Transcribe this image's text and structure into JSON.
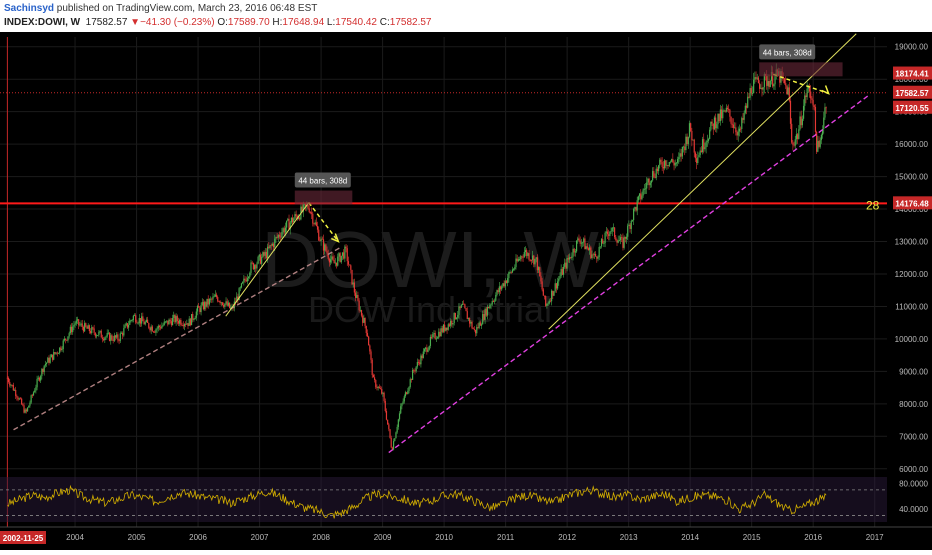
{
  "header": {
    "author": "Sachinsyd",
    "published": " published on TradingView.com, March 23, 2016 06:48 EST",
    "symbol": "INDEX:DOWI, W",
    "last": "17582.57",
    "change": "▼−41.30 (−0.23%)",
    "o_label": "O:",
    "o": "17589.70",
    "h_label": "H:",
    "h": "17648.94",
    "l_label": "L:",
    "l": "17540.42",
    "c_label": "C:",
    "c": "17582.57"
  },
  "watermark": {
    "symbol": "DOWI, W",
    "name": "DOW Industrial"
  },
  "annotations": {
    "measure1": "44 bars, 308d",
    "measure2": "44 bars, 308d",
    "count": "28"
  },
  "colors": {
    "background": "#000000",
    "up": "#4caf50",
    "down": "#e53935",
    "trend_yellow": "#e0e060",
    "trend_magenta": "#e040e0",
    "trend_pink": "#b08080",
    "measure": "#f0f040",
    "resistance": "#ff1a1a",
    "rsi": "#d4b000"
  },
  "chart_data": {
    "type": "candlestick",
    "symbol": "INDEX:DOWI",
    "interval": "W",
    "x_ticks": [
      "2004",
      "2005",
      "2006",
      "2007",
      "2008",
      "2009",
      "2010",
      "2011",
      "2012",
      "2013",
      "2014",
      "2015",
      "2016",
      "2017"
    ],
    "x_start_label": "2002-11-25",
    "y_ticks": [
      6000,
      7000,
      8000,
      9000,
      10000,
      11000,
      12000,
      13000,
      14000,
      15000,
      16000,
      17000,
      18000,
      19000
    ],
    "y_tick_labels": [
      "6000.00",
      "7000.00",
      "8000.00",
      "9000.00",
      "10000.00",
      "11000.00",
      "12000.00",
      "13000.00",
      "14000.00",
      "15000.00",
      "16000.00",
      "17000.00",
      "18000.00",
      "19000.00"
    ],
    "ylim": [
      5900,
      19300
    ],
    "price_markers": [
      {
        "label": "18174.41",
        "value": 18174.41
      },
      {
        "label": "17582.57",
        "value": 17582.57
      },
      {
        "label": "17120.55",
        "value": 17120.55
      },
      {
        "label": "14176.48",
        "value": 14176.48
      }
    ],
    "resistance_level": 14176.48,
    "series": [
      {
        "t": 2002.9,
        "v": 8800
      },
      {
        "t": 2003.05,
        "v": 8300
      },
      {
        "t": 2003.2,
        "v": 7700
      },
      {
        "t": 2003.35,
        "v": 8500
      },
      {
        "t": 2003.5,
        "v": 9200
      },
      {
        "t": 2003.75,
        "v": 9700
      },
      {
        "t": 2004.0,
        "v": 10500
      },
      {
        "t": 2004.2,
        "v": 10300
      },
      {
        "t": 2004.45,
        "v": 10100
      },
      {
        "t": 2004.7,
        "v": 10000
      },
      {
        "t": 2004.95,
        "v": 10700
      },
      {
        "t": 2005.3,
        "v": 10300
      },
      {
        "t": 2005.6,
        "v": 10600
      },
      {
        "t": 2005.85,
        "v": 10500
      },
      {
        "t": 2006.0,
        "v": 10900
      },
      {
        "t": 2006.3,
        "v": 11300
      },
      {
        "t": 2006.55,
        "v": 10900
      },
      {
        "t": 2006.85,
        "v": 12200
      },
      {
        "t": 2007.1,
        "v": 12600
      },
      {
        "t": 2007.35,
        "v": 13300
      },
      {
        "t": 2007.55,
        "v": 13700
      },
      {
        "t": 2007.8,
        "v": 14100
      },
      {
        "t": 2008.0,
        "v": 13000
      },
      {
        "t": 2008.2,
        "v": 12300
      },
      {
        "t": 2008.4,
        "v": 12700
      },
      {
        "t": 2008.55,
        "v": 11400
      },
      {
        "t": 2008.75,
        "v": 10200
      },
      {
        "t": 2008.85,
        "v": 8700
      },
      {
        "t": 2009.0,
        "v": 8300
      },
      {
        "t": 2009.15,
        "v": 6600
      },
      {
        "t": 2009.3,
        "v": 7900
      },
      {
        "t": 2009.5,
        "v": 9000
      },
      {
        "t": 2009.8,
        "v": 10000
      },
      {
        "t": 2010.1,
        "v": 10500
      },
      {
        "t": 2010.3,
        "v": 11000
      },
      {
        "t": 2010.5,
        "v": 10200
      },
      {
        "t": 2010.75,
        "v": 11100
      },
      {
        "t": 2011.0,
        "v": 11800
      },
      {
        "t": 2011.3,
        "v": 12700
      },
      {
        "t": 2011.5,
        "v": 12400
      },
      {
        "t": 2011.65,
        "v": 11000
      },
      {
        "t": 2011.9,
        "v": 12000
      },
      {
        "t": 2012.2,
        "v": 13100
      },
      {
        "t": 2012.45,
        "v": 12500
      },
      {
        "t": 2012.7,
        "v": 13400
      },
      {
        "t": 2012.9,
        "v": 12900
      },
      {
        "t": 2013.1,
        "v": 14000
      },
      {
        "t": 2013.35,
        "v": 15000
      },
      {
        "t": 2013.6,
        "v": 15500
      },
      {
        "t": 2013.8,
        "v": 15400
      },
      {
        "t": 2014.0,
        "v": 16500
      },
      {
        "t": 2014.1,
        "v": 15600
      },
      {
        "t": 2014.4,
        "v": 16700
      },
      {
        "t": 2014.6,
        "v": 17000
      },
      {
        "t": 2014.8,
        "v": 16300
      },
      {
        "t": 2015.0,
        "v": 17800
      },
      {
        "t": 2015.3,
        "v": 18000
      },
      {
        "t": 2015.45,
        "v": 18100
      },
      {
        "t": 2015.6,
        "v": 17600
      },
      {
        "t": 2015.65,
        "v": 16000
      },
      {
        "t": 2015.75,
        "v": 16300
      },
      {
        "t": 2015.9,
        "v": 17700
      },
      {
        "t": 2016.0,
        "v": 17400
      },
      {
        "t": 2016.05,
        "v": 16000
      },
      {
        "t": 2016.1,
        "v": 15800
      },
      {
        "t": 2016.15,
        "v": 16600
      },
      {
        "t": 2016.23,
        "v": 17582
      }
    ],
    "trendlines": [
      {
        "style": "dashed",
        "color": "pink",
        "from": [
          2003.0,
          7200
        ],
        "to": [
          2008.3,
          12800
        ]
      },
      {
        "style": "solid",
        "color": "yellow",
        "from": [
          2006.45,
          10700
        ],
        "to": [
          2007.8,
          14200
        ]
      },
      {
        "style": "solid",
        "color": "yellow",
        "from": [
          2011.7,
          10300
        ],
        "to": [
          2016.7,
          19400
        ]
      },
      {
        "style": "dashed",
        "color": "magenta",
        "from": [
          2009.1,
          6500
        ],
        "to": [
          2016.9,
          17500
        ]
      }
    ],
    "rsi": {
      "levels": [
        70,
        30
      ],
      "tick_labels": [
        "80.0000",
        "40.0000"
      ],
      "values": [
        48,
        55,
        62,
        58,
        65,
        70,
        60,
        54,
        50,
        56,
        62,
        58,
        52,
        60,
        66,
        63,
        58,
        55,
        50,
        56,
        62,
        68,
        60,
        50,
        42,
        38,
        30,
        35,
        45,
        58,
        64,
        60,
        55,
        48,
        52,
        60,
        64,
        58,
        50,
        42,
        48,
        58,
        62,
        55,
        50,
        60,
        66,
        70,
        64,
        58,
        62,
        55,
        60,
        64,
        52,
        58,
        62,
        60,
        54,
        40,
        48,
        62,
        50,
        38,
        42,
        52,
        58
      ]
    }
  }
}
